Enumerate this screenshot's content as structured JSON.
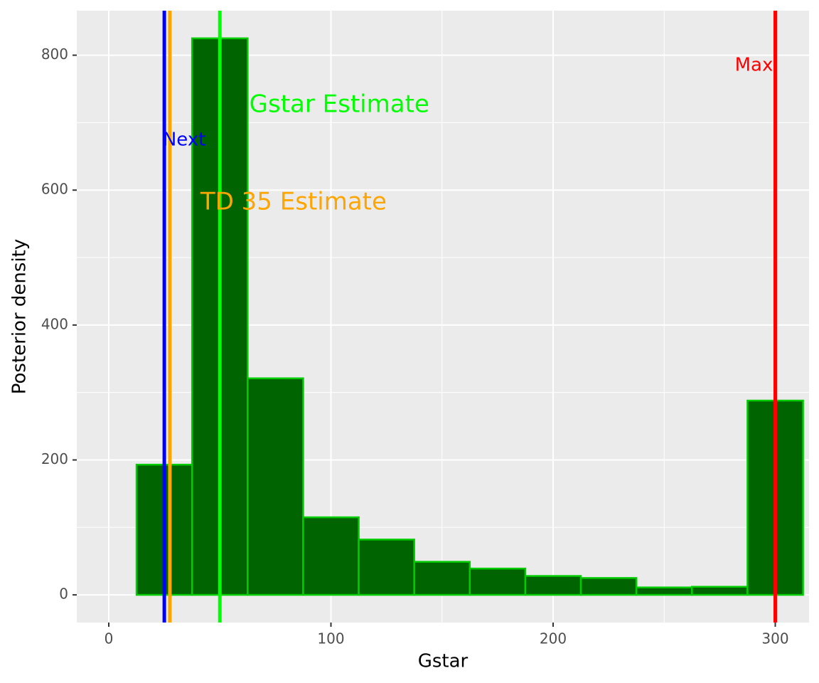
{
  "chart_data": {
    "type": "histogram",
    "x_label": "Gstar",
    "y_label": "Posterior density",
    "bins": [
      12.5,
      37.5,
      62.5,
      87.5,
      112.5,
      137.5,
      162.5,
      187.5,
      212.5,
      237.5,
      262.5,
      287.5,
      312.5
    ],
    "values": [
      193,
      825,
      321,
      115,
      82,
      49,
      39,
      28,
      25,
      11,
      12,
      288
    ],
    "color": "#006400",
    "edge_color": "#00cc00",
    "xlim": [
      -14.4,
      315.2
    ],
    "ylim": [
      -41,
      866
    ],
    "xticks": [
      0,
      100,
      200,
      300
    ],
    "yticks": [
      0,
      200,
      400,
      600,
      800
    ],
    "grid": true,
    "vlines": [
      {
        "name": "Next",
        "x": 25,
        "color": "#0000ff"
      },
      {
        "name": "TD 35 Estimate",
        "x": 27.5,
        "color": "#ffa500"
      },
      {
        "name": "Gstar Estimate",
        "x": 50,
        "color": "#00ff00"
      },
      {
        "name": "Max",
        "x": 300,
        "color": "#ff0000"
      }
    ]
  }
}
